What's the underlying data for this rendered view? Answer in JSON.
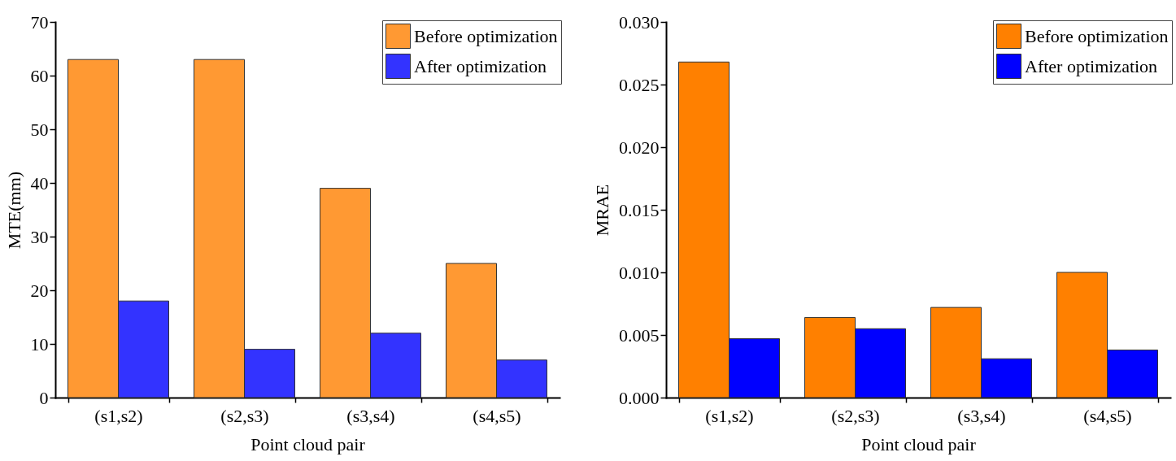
{
  "chart_data": [
    {
      "type": "bar",
      "xlabel": "Point cloud pair",
      "ylabel": "MTE(mm)",
      "categories": [
        "(s1,s2)",
        "(s2,s3)",
        "(s3,s4)",
        "(s4,s5)"
      ],
      "series": [
        {
          "name": "Before optimization",
          "color": "#ff9933",
          "values": [
            63,
            63,
            39,
            25
          ]
        },
        {
          "name": "After optimization",
          "color": "#3333ff",
          "values": [
            18,
            9,
            12,
            7
          ]
        }
      ],
      "ylim": [
        0,
        70
      ],
      "yticks": [
        0,
        10,
        20,
        30,
        40,
        50,
        60,
        70
      ],
      "grid": false,
      "legend": "top right"
    },
    {
      "type": "bar",
      "xlabel": "Point cloud pair",
      "ylabel": "MRAE",
      "categories": [
        "(s1,s2)",
        "(s2,s3)",
        "(s3,s4)",
        "(s4,s5)"
      ],
      "series": [
        {
          "name": "Before optimization",
          "color": "#ff8000",
          "values": [
            0.0268,
            0.0064,
            0.0072,
            0.01
          ]
        },
        {
          "name": "After optimization",
          "color": "#0000ff",
          "values": [
            0.0047,
            0.0055,
            0.0031,
            0.0038
          ]
        }
      ],
      "ylim": [
        0,
        0.03
      ],
      "yticks": [
        {
          "value": 0,
          "label": "0.000"
        },
        0.005,
        {
          "value": 0.01,
          "label": "0.010"
        },
        0.015,
        {
          "value": 0.02,
          "label": "0.020"
        },
        0.025,
        {
          "value": 0.03,
          "label": "0.030"
        }
      ],
      "grid": false,
      "legend": "top right"
    }
  ]
}
